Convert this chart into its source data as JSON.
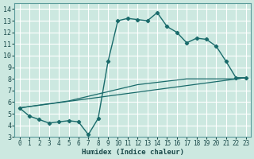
{
  "xlabel": "Humidex (Indice chaleur)",
  "background_color": "#cce8e0",
  "grid_color": "#b0d8d0",
  "line_color": "#1a6b6b",
  "xlim": [
    -0.5,
    23.5
  ],
  "ylim": [
    3,
    14.5
  ],
  "xticks": [
    0,
    1,
    2,
    3,
    4,
    5,
    6,
    7,
    8,
    9,
    10,
    11,
    12,
    13,
    14,
    15,
    16,
    17,
    18,
    19,
    20,
    21,
    22,
    23
  ],
  "yticks": [
    3,
    4,
    5,
    6,
    7,
    8,
    9,
    10,
    11,
    12,
    13,
    14
  ],
  "line1_x": [
    0,
    1,
    2,
    3,
    4,
    5,
    6,
    7,
    8,
    9,
    10,
    11,
    12,
    13,
    14,
    15,
    16,
    17,
    18,
    19,
    20,
    21,
    22,
    23
  ],
  "line1_y": [
    5.5,
    4.8,
    4.5,
    4.2,
    4.3,
    4.4,
    4.3,
    3.2,
    4.6,
    9.5,
    13.0,
    13.2,
    13.1,
    13.0,
    13.7,
    12.5,
    12.0,
    11.1,
    11.5,
    11.4,
    10.8,
    9.5,
    8.1,
    8.1
  ],
  "line2_x": [
    0,
    5,
    6,
    7,
    8,
    9,
    10,
    11,
    12,
    13,
    14,
    15,
    16,
    17,
    18,
    19,
    20,
    21,
    22,
    23
  ],
  "line2_y": [
    5.5,
    6.1,
    6.3,
    6.5,
    6.7,
    6.9,
    7.1,
    7.3,
    7.5,
    7.6,
    7.7,
    7.8,
    7.9,
    8.0,
    8.0,
    8.0,
    8.0,
    8.0,
    8.0,
    8.1
  ],
  "line3_x": [
    0,
    23
  ],
  "line3_y": [
    5.5,
    8.1
  ]
}
